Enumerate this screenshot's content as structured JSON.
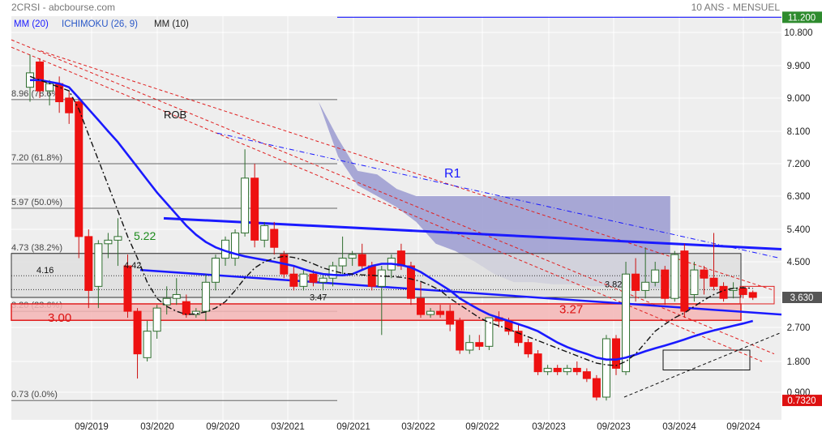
{
  "header": {
    "symbol_source": "2CRSI - abcbourse.com",
    "period": "10 ANS - MENSUEL",
    "indicators": [
      {
        "label": "MM (20)",
        "color": "#1a1aff"
      },
      {
        "label": "ICHIMOKU (26, 9)",
        "color": "#2a58c8"
      },
      {
        "label": "MM (10)",
        "color": "#222222"
      }
    ]
  },
  "chart_data": {
    "type": "candlestick",
    "title": "",
    "xlabel": "",
    "ylabel": "",
    "ylim": [
      0.3,
      11.4
    ],
    "grid": true,
    "x_ticks": [
      "09/2019",
      "03/2020",
      "09/2020",
      "03/2021",
      "09/2021",
      "03/2022",
      "09/2022",
      "03/2023",
      "09/2023",
      "03/2024",
      "09/2024"
    ],
    "y_ticks": [
      "10.800",
      "9.900",
      "9.000",
      "8.100",
      "7.200",
      "6.300",
      "5.400",
      "4.500",
      "3.630",
      "2.700",
      "1.800",
      "0.900"
    ],
    "price_boxes": [
      {
        "label": "11.200",
        "value": 11.2,
        "color": "#2e8b2e"
      },
      {
        "label": "3.630",
        "value": 3.63,
        "color": "#555555"
      },
      {
        "label": "0.7320",
        "value": 0.732,
        "color": "#dd1111"
      }
    ],
    "fib_levels": [
      {
        "label": "8.96 (78.6%)",
        "value": 8.96
      },
      {
        "label": "7.20 (61.8%)",
        "value": 7.2
      },
      {
        "label": "5.97 (50.0%)",
        "value": 5.97
      },
      {
        "label": "4.73 (38.2%)",
        "value": 4.73
      },
      {
        "label": "3.20 (23.6%)",
        "value": 3.2
      },
      {
        "label": "0.73 (0.0%)",
        "value": 0.73
      }
    ],
    "annotations": [
      {
        "text": "ROB",
        "color": "#111111"
      },
      {
        "text": "R1",
        "color": "#1a1aff"
      },
      {
        "text": "5.22",
        "color": "#1a8a1a"
      },
      {
        "text": "3.00",
        "color": "#dd1111"
      },
      {
        "text": "3.27",
        "color": "#dd1111"
      },
      {
        "text": "4.42",
        "color": "#111111"
      },
      {
        "text": "4.16",
        "color": "#111111"
      },
      {
        "text": "3.47",
        "color": "#111111"
      },
      {
        "text": "3.82",
        "color": "#111111"
      }
    ],
    "candles": [
      {
        "o": 9.3,
        "h": 10.2,
        "l": 8.9,
        "c": 9.7
      },
      {
        "o": 10.0,
        "h": 10.1,
        "l": 9.0,
        "c": 9.2
      },
      {
        "o": 9.2,
        "h": 9.5,
        "l": 8.8,
        "c": 9.4
      },
      {
        "o": 9.4,
        "h": 9.6,
        "l": 8.6,
        "c": 8.9
      },
      {
        "o": 9.0,
        "h": 9.2,
        "l": 8.3,
        "c": 8.6
      },
      {
        "o": 8.9,
        "h": 9.0,
        "l": 4.6,
        "c": 5.2
      },
      {
        "o": 5.2,
        "h": 5.4,
        "l": 3.3,
        "c": 3.8
      },
      {
        "o": 3.9,
        "h": 5.1,
        "l": 3.3,
        "c": 5.0
      },
      {
        "o": 5.0,
        "h": 5.3,
        "l": 4.6,
        "c": 5.1
      },
      {
        "o": 5.1,
        "h": 5.7,
        "l": 4.4,
        "c": 5.2
      },
      {
        "o": 4.4,
        "h": 4.7,
        "l": 3.0,
        "c": 3.2
      },
      {
        "o": 3.2,
        "h": 3.3,
        "l": 1.3,
        "c": 2.0
      },
      {
        "o": 1.9,
        "h": 2.9,
        "l": 1.8,
        "c": 2.6
      },
      {
        "o": 2.6,
        "h": 3.4,
        "l": 2.4,
        "c": 3.3
      },
      {
        "o": 3.4,
        "h": 3.9,
        "l": 3.1,
        "c": 3.6
      },
      {
        "o": 3.6,
        "h": 4.1,
        "l": 3.4,
        "c": 3.7
      },
      {
        "o": 3.5,
        "h": 3.7,
        "l": 3.0,
        "c": 3.1
      },
      {
        "o": 3.1,
        "h": 3.3,
        "l": 3.0,
        "c": 3.2
      },
      {
        "o": 3.2,
        "h": 4.2,
        "l": 2.9,
        "c": 4.0
      },
      {
        "o": 4.0,
        "h": 4.7,
        "l": 3.8,
        "c": 4.6
      },
      {
        "o": 4.6,
        "h": 5.2,
        "l": 4.4,
        "c": 5.1
      },
      {
        "o": 4.6,
        "h": 5.4,
        "l": 4.4,
        "c": 5.3
      },
      {
        "o": 5.3,
        "h": 7.6,
        "l": 5.2,
        "c": 6.8
      },
      {
        "o": 6.8,
        "h": 7.2,
        "l": 4.9,
        "c": 5.1
      },
      {
        "o": 5.1,
        "h": 5.6,
        "l": 4.9,
        "c": 5.5
      },
      {
        "o": 5.4,
        "h": 5.6,
        "l": 4.7,
        "c": 4.9
      },
      {
        "o": 4.7,
        "h": 4.8,
        "l": 4.1,
        "c": 4.2
      },
      {
        "o": 4.2,
        "h": 4.4,
        "l": 3.8,
        "c": 3.9
      },
      {
        "o": 3.9,
        "h": 4.3,
        "l": 3.8,
        "c": 4.2
      },
      {
        "o": 4.2,
        "h": 4.3,
        "l": 3.9,
        "c": 4.0
      },
      {
        "o": 4.0,
        "h": 4.2,
        "l": 3.8,
        "c": 4.1
      },
      {
        "o": 4.1,
        "h": 4.5,
        "l": 3.9,
        "c": 4.4
      },
      {
        "o": 4.4,
        "h": 5.2,
        "l": 4.2,
        "c": 4.6
      },
      {
        "o": 4.6,
        "h": 4.8,
        "l": 4.4,
        "c": 4.7
      },
      {
        "o": 4.7,
        "h": 5.0,
        "l": 4.3,
        "c": 4.4
      },
      {
        "o": 4.4,
        "h": 4.5,
        "l": 3.8,
        "c": 3.9
      },
      {
        "o": 3.9,
        "h": 4.4,
        "l": 2.5,
        "c": 4.3
      },
      {
        "o": 4.3,
        "h": 4.7,
        "l": 4.1,
        "c": 4.6
      },
      {
        "o": 4.8,
        "h": 5.0,
        "l": 4.3,
        "c": 4.4
      },
      {
        "o": 4.4,
        "h": 4.5,
        "l": 3.4,
        "c": 3.6
      },
      {
        "o": 3.6,
        "h": 4.0,
        "l": 3.0,
        "c": 3.1
      },
      {
        "o": 3.1,
        "h": 3.3,
        "l": 3.0,
        "c": 3.2
      },
      {
        "o": 3.2,
        "h": 3.4,
        "l": 3.0,
        "c": 3.1
      },
      {
        "o": 3.2,
        "h": 3.4,
        "l": 2.6,
        "c": 2.8
      },
      {
        "o": 2.9,
        "h": 3.0,
        "l": 2.0,
        "c": 2.1
      },
      {
        "o": 2.1,
        "h": 2.5,
        "l": 2.0,
        "c": 2.3
      },
      {
        "o": 2.3,
        "h": 2.5,
        "l": 2.1,
        "c": 2.2
      },
      {
        "o": 2.2,
        "h": 3.0,
        "l": 2.1,
        "c": 3.0
      },
      {
        "o": 3.0,
        "h": 3.2,
        "l": 2.7,
        "c": 2.9
      },
      {
        "o": 2.9,
        "h": 3.0,
        "l": 2.5,
        "c": 2.6
      },
      {
        "o": 2.6,
        "h": 2.8,
        "l": 2.2,
        "c": 2.3
      },
      {
        "o": 2.3,
        "h": 2.4,
        "l": 1.9,
        "c": 2.0
      },
      {
        "o": 2.0,
        "h": 2.1,
        "l": 1.4,
        "c": 1.5
      },
      {
        "o": 1.5,
        "h": 1.7,
        "l": 1.4,
        "c": 1.6
      },
      {
        "o": 1.6,
        "h": 1.7,
        "l": 1.4,
        "c": 1.5
      },
      {
        "o": 1.5,
        "h": 1.7,
        "l": 1.4,
        "c": 1.6
      },
      {
        "o": 1.6,
        "h": 1.8,
        "l": 1.4,
        "c": 1.5
      },
      {
        "o": 1.5,
        "h": 1.6,
        "l": 1.2,
        "c": 1.3
      },
      {
        "o": 1.3,
        "h": 1.4,
        "l": 0.73,
        "c": 0.8
      },
      {
        "o": 0.8,
        "h": 2.5,
        "l": 0.73,
        "c": 2.4
      },
      {
        "o": 2.4,
        "h": 2.5,
        "l": 1.4,
        "c": 1.6
      },
      {
        "o": 1.5,
        "h": 4.5,
        "l": 1.4,
        "c": 4.2
      },
      {
        "o": 4.2,
        "h": 4.6,
        "l": 3.5,
        "c": 3.8
      },
      {
        "o": 3.8,
        "h": 4.9,
        "l": 3.6,
        "c": 4.0
      },
      {
        "o": 4.0,
        "h": 4.5,
        "l": 3.9,
        "c": 4.3
      },
      {
        "o": 4.3,
        "h": 4.4,
        "l": 3.4,
        "c": 3.6
      },
      {
        "o": 3.6,
        "h": 4.8,
        "l": 3.5,
        "c": 4.7
      },
      {
        "o": 4.8,
        "h": 5.0,
        "l": 3.0,
        "c": 3.2
      },
      {
        "o": 3.7,
        "h": 4.5,
        "l": 3.5,
        "c": 4.3
      },
      {
        "o": 4.3,
        "h": 4.4,
        "l": 3.7,
        "c": 4.1
      },
      {
        "o": 4.1,
        "h": 5.3,
        "l": 3.8,
        "c": 3.9
      },
      {
        "o": 3.9,
        "h": 4.0,
        "l": 3.5,
        "c": 3.6
      },
      {
        "o": 3.8,
        "h": 4.0,
        "l": 3.6,
        "c": 3.85
      },
      {
        "o": 3.85,
        "h": 3.9,
        "l": 3.6,
        "c": 3.7
      },
      {
        "o": 3.75,
        "h": 3.8,
        "l": 3.55,
        "c": 3.63
      }
    ],
    "mm20": [
      9.5,
      9.5,
      9.45,
      9.4,
      9.3,
      9.0,
      8.7,
      8.4,
      8.1,
      7.8,
      7.45,
      7.1,
      6.75,
      6.4,
      6.1,
      5.8,
      5.5,
      5.25,
      5.05,
      4.9,
      4.8,
      4.72,
      4.65,
      4.6,
      4.55,
      4.5,
      4.45,
      4.4,
      4.32,
      4.25,
      4.2,
      4.18,
      4.17,
      4.2,
      4.3,
      4.4,
      4.45,
      4.45,
      4.42,
      4.36,
      4.25,
      4.1,
      3.95,
      3.8,
      3.6,
      3.42,
      3.25,
      3.1,
      3.0,
      2.9,
      2.8,
      2.7,
      2.6,
      2.45,
      2.3,
      2.18,
      2.08,
      2.0,
      1.9,
      1.85,
      1.85,
      1.9,
      1.98,
      2.07,
      2.15,
      2.22,
      2.3,
      2.38,
      2.47,
      2.55,
      2.62,
      2.68,
      2.75,
      2.82,
      2.9
    ],
    "mm10": [
      9.6,
      9.5,
      9.4,
      9.3,
      9.2,
      8.7,
      8.0,
      7.3,
      6.6,
      5.9,
      5.2,
      4.6,
      4.0,
      3.6,
      3.35,
      3.2,
      3.1,
      3.12,
      3.18,
      3.3,
      3.5,
      3.8,
      4.1,
      4.35,
      4.5,
      4.6,
      4.65,
      4.62,
      4.55,
      4.45,
      4.35,
      4.28,
      4.22,
      4.2,
      4.18,
      4.17,
      4.15,
      4.14,
      4.12,
      4.08,
      4.02,
      3.92,
      3.8,
      3.6,
      3.4,
      3.2,
      3.0,
      2.85,
      2.75,
      2.65,
      2.55,
      2.45,
      2.35,
      2.25,
      2.15,
      2.05,
      1.95,
      1.85,
      1.75,
      1.7,
      1.68,
      1.8,
      2.0,
      2.3,
      2.6,
      2.8,
      3.0,
      3.15,
      3.35,
      3.55,
      3.7,
      3.8,
      3.85,
      3.87,
      3.85
    ],
    "ichimoku_cloud_upper": [
      8.9,
      7.9,
      7.0,
      6.9,
      6.5,
      6.3,
      6.3,
      6.3,
      6.3,
      6.3,
      6.3,
      6.3,
      6.3,
      6.3,
      6.3,
      6.3,
      6.3,
      6.3,
      6.3
    ],
    "ichimoku_cloud_lower": [
      8.9,
      7.4,
      6.6,
      6.3,
      6.0,
      5.6,
      5.0,
      4.8,
      4.5,
      4.2,
      4.0,
      4.0,
      3.95,
      3.95,
      3.9,
      3.9,
      3.85,
      3.85,
      3.85
    ],
    "ichimoku_cloud_start_index": 36
  }
}
